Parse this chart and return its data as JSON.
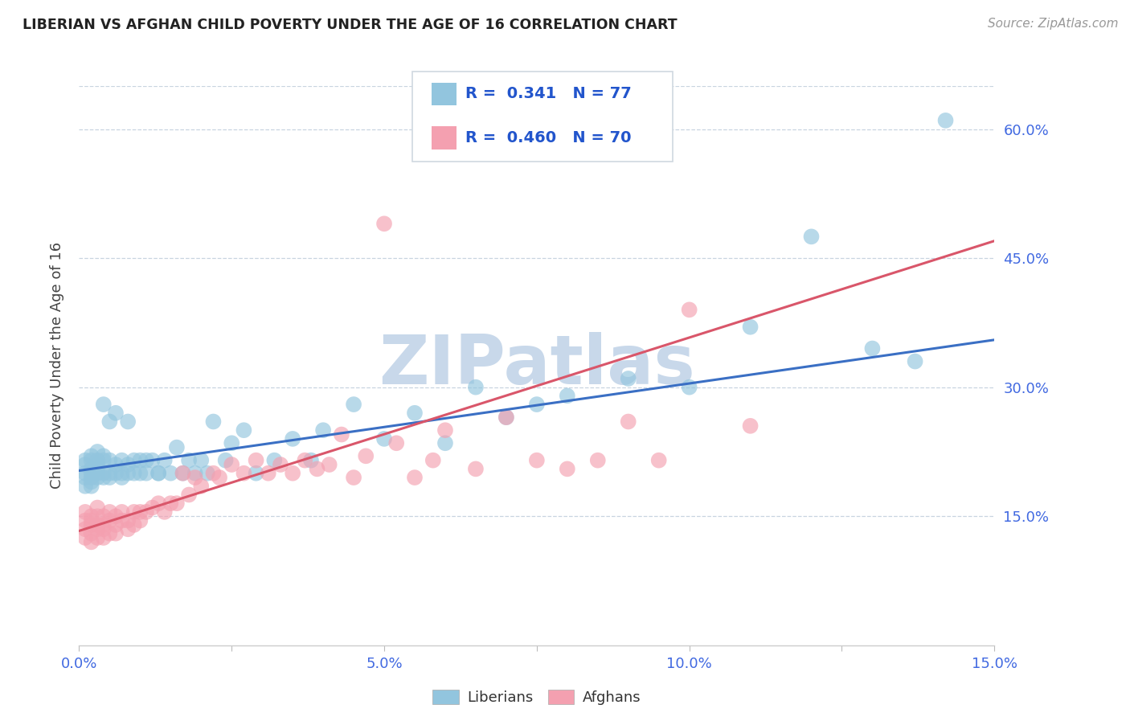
{
  "title": "LIBERIAN VS AFGHAN CHILD POVERTY UNDER THE AGE OF 16 CORRELATION CHART",
  "source": "Source: ZipAtlas.com",
  "ylabel": "Child Poverty Under the Age of 16",
  "xlim": [
    0.0,
    0.15
  ],
  "ylim": [
    0.0,
    0.65
  ],
  "yticks": [
    0.15,
    0.3,
    0.45,
    0.6
  ],
  "ytick_labels": [
    "15.0%",
    "30.0%",
    "45.0%",
    "60.0%"
  ],
  "xtick_labels": [
    "0.0%",
    "",
    "5.0%",
    "",
    "10.0%",
    "",
    "15.0%"
  ],
  "xticks": [
    0.0,
    0.025,
    0.05,
    0.075,
    0.1,
    0.125,
    0.15
  ],
  "liberian_color": "#92c5de",
  "afghan_color": "#f4a0b0",
  "trend_liberian_color": "#3a6fc4",
  "trend_afghan_color": "#d9566a",
  "R_liberian": 0.341,
  "N_liberian": 77,
  "R_afghan": 0.46,
  "N_afghan": 70,
  "watermark": "ZIPatlas",
  "watermark_color": "#c8d8ea",
  "legend_labels": [
    "Liberians",
    "Afghans"
  ],
  "liberian_x": [
    0.001,
    0.001,
    0.001,
    0.001,
    0.001,
    0.002,
    0.002,
    0.002,
    0.002,
    0.002,
    0.002,
    0.002,
    0.003,
    0.003,
    0.003,
    0.003,
    0.003,
    0.003,
    0.004,
    0.004,
    0.004,
    0.004,
    0.004,
    0.005,
    0.005,
    0.005,
    0.005,
    0.006,
    0.006,
    0.006,
    0.007,
    0.007,
    0.007,
    0.008,
    0.008,
    0.008,
    0.009,
    0.009,
    0.01,
    0.01,
    0.011,
    0.011,
    0.012,
    0.013,
    0.013,
    0.014,
    0.015,
    0.016,
    0.017,
    0.018,
    0.019,
    0.02,
    0.021,
    0.022,
    0.024,
    0.025,
    0.027,
    0.029,
    0.032,
    0.035,
    0.038,
    0.04,
    0.045,
    0.05,
    0.055,
    0.06,
    0.065,
    0.07,
    0.075,
    0.08,
    0.09,
    0.1,
    0.11,
    0.12,
    0.13,
    0.137,
    0.142
  ],
  "liberian_y": [
    0.2,
    0.21,
    0.195,
    0.215,
    0.185,
    0.205,
    0.195,
    0.2,
    0.185,
    0.215,
    0.22,
    0.19,
    0.21,
    0.195,
    0.2,
    0.205,
    0.215,
    0.225,
    0.2,
    0.215,
    0.28,
    0.195,
    0.22,
    0.26,
    0.2,
    0.215,
    0.195,
    0.27,
    0.21,
    0.2,
    0.215,
    0.2,
    0.195,
    0.21,
    0.2,
    0.26,
    0.215,
    0.2,
    0.215,
    0.2,
    0.2,
    0.215,
    0.215,
    0.2,
    0.2,
    0.215,
    0.2,
    0.23,
    0.2,
    0.215,
    0.2,
    0.215,
    0.2,
    0.26,
    0.215,
    0.235,
    0.25,
    0.2,
    0.215,
    0.24,
    0.215,
    0.25,
    0.28,
    0.24,
    0.27,
    0.235,
    0.3,
    0.265,
    0.28,
    0.29,
    0.31,
    0.3,
    0.37,
    0.475,
    0.345,
    0.33,
    0.61
  ],
  "afghan_x": [
    0.001,
    0.001,
    0.001,
    0.001,
    0.002,
    0.002,
    0.002,
    0.002,
    0.002,
    0.003,
    0.003,
    0.003,
    0.003,
    0.003,
    0.004,
    0.004,
    0.004,
    0.004,
    0.005,
    0.005,
    0.005,
    0.006,
    0.006,
    0.006,
    0.007,
    0.007,
    0.008,
    0.008,
    0.009,
    0.009,
    0.01,
    0.01,
    0.011,
    0.012,
    0.013,
    0.014,
    0.015,
    0.016,
    0.017,
    0.018,
    0.019,
    0.02,
    0.022,
    0.023,
    0.025,
    0.027,
    0.029,
    0.031,
    0.033,
    0.035,
    0.037,
    0.039,
    0.041,
    0.043,
    0.045,
    0.047,
    0.05,
    0.052,
    0.055,
    0.058,
    0.06,
    0.065,
    0.07,
    0.075,
    0.08,
    0.085,
    0.09,
    0.095,
    0.1,
    0.11
  ],
  "afghan_y": [
    0.145,
    0.135,
    0.155,
    0.125,
    0.14,
    0.15,
    0.13,
    0.145,
    0.12,
    0.14,
    0.135,
    0.15,
    0.125,
    0.16,
    0.14,
    0.135,
    0.15,
    0.125,
    0.145,
    0.13,
    0.155,
    0.14,
    0.15,
    0.13,
    0.145,
    0.155,
    0.145,
    0.135,
    0.155,
    0.14,
    0.155,
    0.145,
    0.155,
    0.16,
    0.165,
    0.155,
    0.165,
    0.165,
    0.2,
    0.175,
    0.195,
    0.185,
    0.2,
    0.195,
    0.21,
    0.2,
    0.215,
    0.2,
    0.21,
    0.2,
    0.215,
    0.205,
    0.21,
    0.245,
    0.195,
    0.22,
    0.49,
    0.235,
    0.195,
    0.215,
    0.25,
    0.205,
    0.265,
    0.215,
    0.205,
    0.215,
    0.26,
    0.215,
    0.39,
    0.255
  ],
  "trend_lib_x0": 0.0,
  "trend_lib_y0": 0.203,
  "trend_lib_x1": 0.15,
  "trend_lib_y1": 0.355,
  "trend_afg_x0": 0.0,
  "trend_afg_y0": 0.133,
  "trend_afg_x1": 0.15,
  "trend_afg_y1": 0.47
}
